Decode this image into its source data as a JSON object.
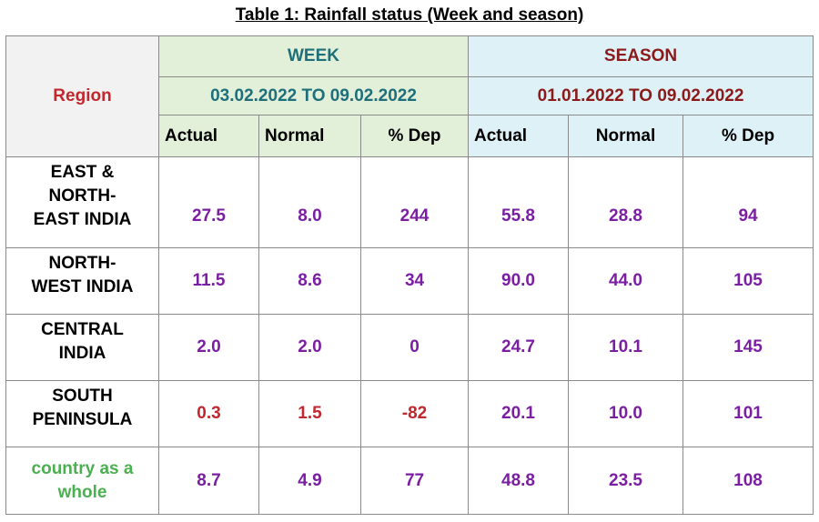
{
  "title": "Table 1: Rainfall status (Week and season)",
  "header": {
    "region_label": "Region",
    "week_label": "WEEK",
    "week_period": "03.02.2022 TO 09.02.2022",
    "season_label": "SEASON",
    "season_period": "01.01.2022 TO 09.02.2022",
    "columns": [
      "Actual",
      "Normal",
      "% Dep",
      "Actual",
      "Normal",
      "% Dep"
    ]
  },
  "rows": [
    {
      "region_lines": [
        "EAST &",
        "NORTH-",
        "EAST INDIA"
      ],
      "week_actual": "27.5",
      "week_normal": "8.0",
      "week_dep": "244",
      "season_actual": "55.8",
      "season_normal": "28.8",
      "season_dep": "94"
    },
    {
      "region_lines": [
        "NORTH-",
        "WEST INDIA"
      ],
      "week_actual": "11.5",
      "week_normal": "8.6",
      "week_dep": "34",
      "season_actual": "90.0",
      "season_normal": "44.0",
      "season_dep": "105"
    },
    {
      "region_lines": [
        "CENTRAL",
        "INDIA"
      ],
      "week_actual": "2.0",
      "week_normal": "2.0",
      "week_dep": "0",
      "season_actual": "24.7",
      "season_normal": "10.1",
      "season_dep": "145"
    },
    {
      "region_lines": [
        "SOUTH",
        "PENINSULA"
      ],
      "week_actual": "0.3",
      "week_normal": "1.5",
      "week_dep": "-82",
      "season_actual": "20.1",
      "season_normal": "10.0",
      "season_dep": "101"
    },
    {
      "region_lines": [
        "country as a",
        "whole"
      ],
      "week_actual": "8.7",
      "week_normal": "4.9",
      "week_dep": "77",
      "season_actual": "48.8",
      "season_normal": "23.5",
      "season_dep": "108"
    }
  ],
  "colors": {
    "region_header": "#c1272d",
    "week_text": "#1f6f7a",
    "season_text": "#8b1a1a",
    "value_text": "#7b1fa2",
    "negative_text": "#c1272d",
    "country_text": "#4caf50",
    "week_bg": "#e2efd9",
    "season_bg": "#def1f7"
  }
}
